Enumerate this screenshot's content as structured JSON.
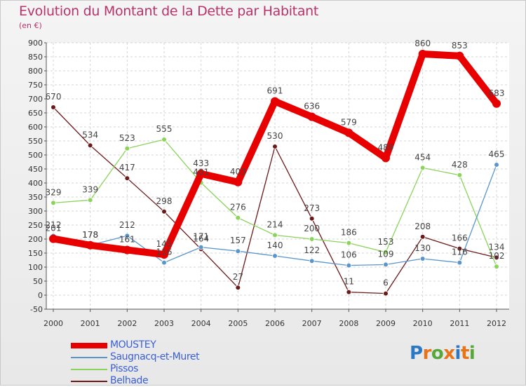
{
  "header": {
    "title": "Evolution du Montant de la Dette par Habitant",
    "subtitle": "(en €)"
  },
  "brand": {
    "letters": [
      "P",
      "r",
      "o",
      "x",
      "i",
      "t",
      "i"
    ],
    "colors": [
      "#2b78c5",
      "#e8741a",
      "#57a83a",
      "#e8741a",
      "#2b78c5",
      "#e8741a",
      "#57a83a"
    ]
  },
  "chart_data": {
    "type": "line",
    "title": "Evolution du Montant de la Dette par Habitant",
    "ylabel": "(en €)",
    "xlabel": "",
    "ylim": [
      -50,
      900
    ],
    "yticks": [
      -50,
      0,
      50,
      100,
      150,
      200,
      250,
      300,
      350,
      400,
      450,
      500,
      550,
      600,
      650,
      700,
      750,
      800,
      850,
      900
    ],
    "categories": [
      "2000",
      "2001",
      "2002",
      "2003",
      "2004",
      "2005",
      "2006",
      "2007",
      "2008",
      "2009",
      "2010",
      "2011",
      "2012"
    ],
    "series": [
      {
        "name": "Belhade",
        "color": "#6b1a1a",
        "values": [
          670,
          534,
          417,
          298,
          164,
          27,
          530,
          273,
          11,
          6,
          208,
          166,
          134
        ],
        "labels": [
          "670",
          "534",
          "417",
          "298",
          "164",
          "27",
          "530",
          "273",
          "11",
          "6",
          "208",
          "166",
          "134"
        ]
      },
      {
        "name": "Pissos",
        "color": "#8ad45a",
        "values": [
          329,
          339,
          523,
          555,
          401,
          276,
          214,
          200,
          186,
          153,
          454,
          428,
          102
        ],
        "labels": [
          "329",
          "339",
          "523",
          "555",
          "401",
          "276",
          "214",
          "200",
          "186",
          "153",
          "454",
          "428",
          "102"
        ]
      },
      {
        "name": "Saugnacq-et-Muret",
        "color": "#5a96cc",
        "values": [
          212,
          178,
          212,
          116,
          171,
          157,
          140,
          122,
          106,
          109,
          130,
          116,
          465
        ],
        "labels": [
          "212",
          "178",
          "212",
          "116",
          "171",
          "157",
          "140",
          "122",
          "106",
          "109",
          "130",
          "116",
          "465"
        ]
      },
      {
        "name": "MOUSTEY",
        "color": "#e80000",
        "values": [
          201,
          178,
          161,
          145,
          433,
          403,
          691,
          636,
          579,
          489,
          860,
          853,
          683
        ],
        "labels": [
          "201",
          "178",
          "161",
          "145",
          "433",
          "403",
          "691",
          "636",
          "579",
          "489",
          "860",
          "853",
          "683"
        ]
      }
    ],
    "legend": [
      {
        "name": "MOUSTEY",
        "color": "#e80000"
      },
      {
        "name": "Saugnacq-et-Muret",
        "color": "#5a96cc"
      },
      {
        "name": "Pissos",
        "color": "#8ad45a"
      },
      {
        "name": "Belhade",
        "color": "#6b1a1a"
      }
    ],
    "legend_position": "bottom-left",
    "grid": true
  }
}
